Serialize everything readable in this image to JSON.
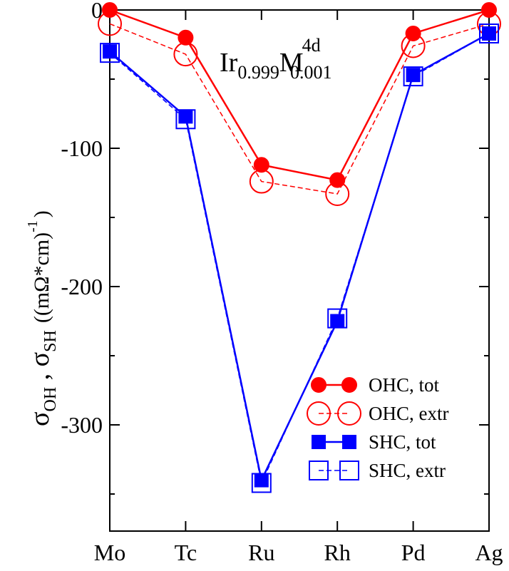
{
  "chart_data": {
    "type": "line",
    "title": {
      "base1": "Ir",
      "sub1": "0.999",
      "base2": "M",
      "sup2": "4d",
      "sub2": "0.001"
    },
    "ylabel": {
      "sigma": "σ",
      "sub1": "OH",
      "sep": " , ",
      "sub2": "SH",
      "unit": "((mΩ*cm)",
      "unit_sup": "-1",
      "unit_close": ")"
    },
    "xlabel": "",
    "categories": [
      "Mo",
      "Tc",
      "Ru",
      "Rh",
      "Pd",
      "Ag"
    ],
    "ylim": [
      -376,
      0
    ],
    "yticks": [
      0,
      -100,
      -200,
      -300
    ],
    "ytick_labels": [
      "0",
      "-100",
      "-200",
      "-300"
    ],
    "legend_position": "bottom-right",
    "series": [
      {
        "name": "OHC, tot",
        "color": "#ff0000",
        "marker": "circle",
        "filled": true,
        "dashed": false,
        "values": [
          0,
          -20,
          -112,
          -123,
          -17,
          0
        ]
      },
      {
        "name": "OHC, extr",
        "color": "#ff0000",
        "marker": "circle",
        "filled": false,
        "dashed": true,
        "values": [
          -10,
          -32,
          -124,
          -133,
          -26,
          -10
        ]
      },
      {
        "name": "SHC, tot",
        "color": "#0000ff",
        "marker": "square",
        "filled": true,
        "dashed": false,
        "values": [
          -30,
          -77,
          -340,
          -225,
          -47,
          -17
        ]
      },
      {
        "name": "SHC, extr",
        "color": "#0000ff",
        "marker": "square",
        "filled": false,
        "dashed": true,
        "values": [
          -31,
          -79,
          -342,
          -223,
          -48,
          -17
        ]
      }
    ]
  }
}
